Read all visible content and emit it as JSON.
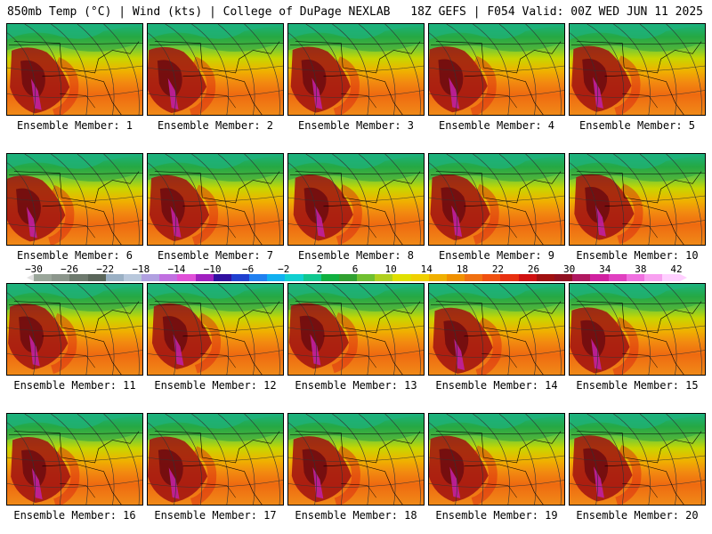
{
  "header": {
    "left": "850mb Temp (°C) | Wind (kts) | College of DuPage NEXLAB",
    "right": "18Z GEFS | F054 Valid: 00Z WED JUN 11 2025"
  },
  "members": [
    "Ensemble Member: 1",
    "Ensemble Member: 2",
    "Ensemble Member: 3",
    "Ensemble Member: 4",
    "Ensemble Member: 5",
    "Ensemble Member: 6",
    "Ensemble Member: 7",
    "Ensemble Member: 8",
    "Ensemble Member: 9",
    "Ensemble Member: 10",
    "Ensemble Member: 11",
    "Ensemble Member: 12",
    "Ensemble Member: 13",
    "Ensemble Member: 14",
    "Ensemble Member: 15",
    "Ensemble Member: 16",
    "Ensemble Member: 17",
    "Ensemble Member: 18",
    "Ensemble Member: 19",
    "Ensemble Member: 20"
  ],
  "colorbar": {
    "labels": [
      "−30",
      "−26",
      "−22",
      "−18",
      "−14",
      "−10",
      "−6",
      "−2",
      "2",
      "6",
      "10",
      "14",
      "18",
      "22",
      "26",
      "30",
      "34",
      "38",
      "42"
    ],
    "colors": [
      "#9aa69a",
      "#8c968c",
      "#6e7a6e",
      "#5a665a",
      "#9ab0c4",
      "#b8c8dc",
      "#b0a0e0",
      "#c070e0",
      "#e050d8",
      "#a020c0",
      "#3010a0",
      "#2040d0",
      "#2080f0",
      "#10b0f0",
      "#10d0d0",
      "#10c890",
      "#10b040",
      "#30a030",
      "#70c030",
      "#b0d020",
      "#e0e000",
      "#f0d000",
      "#f0b000",
      "#f09000",
      "#f07010",
      "#f05010",
      "#e83010",
      "#d01010",
      "#a01010",
      "#901020",
      "#b01860",
      "#d020a0",
      "#e040c0",
      "#f070e0",
      "#f8a0f0",
      "#ffd0ff"
    ]
  }
}
